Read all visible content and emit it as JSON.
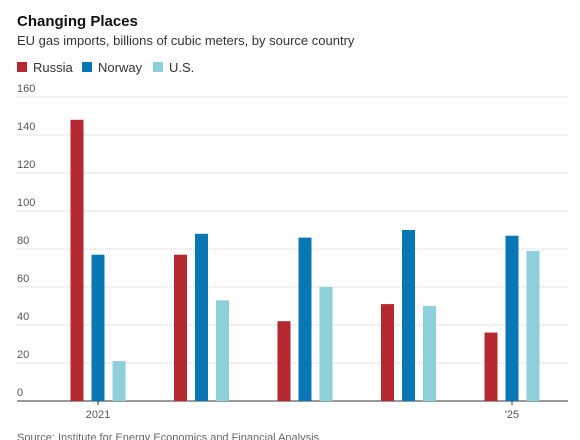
{
  "chart_data": {
    "type": "bar",
    "title": "Changing Places",
    "subtitle": "EU gas imports, billions of cubic meters, by source country",
    "source": "Source: Institute for Energy Economics and Financial Analysis",
    "categories": [
      "2021",
      null,
      null,
      null,
      "'25"
    ],
    "series": [
      {
        "name": "Russia",
        "color": "#b5282f",
        "values": [
          148,
          77,
          42,
          51,
          36
        ]
      },
      {
        "name": "Norway",
        "color": "#0a77b5",
        "values": [
          77,
          88,
          86,
          90,
          87
        ]
      },
      {
        "name": "U.S.",
        "color": "#8ecfdc",
        "values": [
          21,
          53,
          60,
          50,
          79
        ]
      }
    ],
    "ylim": [
      0,
      160
    ],
    "yticks": [
      0,
      20,
      40,
      60,
      80,
      100,
      120,
      140,
      160
    ],
    "grid": true,
    "legend": "top-left"
  }
}
